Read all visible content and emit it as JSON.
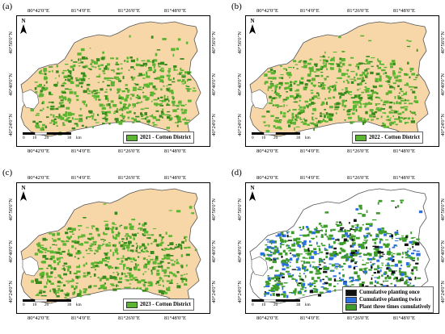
{
  "colors": {
    "land": "#f7d7a8",
    "cotton": "#5cb531",
    "cotton_dark": "#3a8a1d",
    "once": "#111111",
    "twice": "#2c6fe0",
    "three": "#3d9c2a",
    "outline": "#555555"
  },
  "ticks": {
    "top": [
      "80°42'0\"E",
      "81°4'0\"E",
      "81°26'0\"E",
      "81°48'0\"E"
    ],
    "left": [
      "40°56'0\"N",
      "40°40'0\"N",
      "40°24'0\"N"
    ],
    "right": [
      "40°56'0\"N",
      "40°40'0\"N",
      "40°24'0\"N"
    ]
  },
  "scale": {
    "labels": [
      "0",
      "10",
      "20",
      "30"
    ],
    "unit": "km"
  },
  "north_label": "N",
  "panels": [
    {
      "letter": "(a)",
      "legend": [
        {
          "label": "2021 - Cotton District",
          "color_key": "cotton"
        }
      ]
    },
    {
      "letter": "(b)",
      "legend": [
        {
          "label": "2022 - Cotton District",
          "color_key": "cotton"
        }
      ]
    },
    {
      "letter": "(c)",
      "legend": [
        {
          "label": "2023 - Cotton District",
          "color_key": "cotton"
        }
      ]
    },
    {
      "letter": "(d)",
      "legend": [
        {
          "label": "Cumulative planting once",
          "color_key": "once"
        },
        {
          "label": "Cumulative planting twice",
          "color_key": "twice"
        },
        {
          "label": "Plant three times cumulatively",
          "color_key": "three"
        }
      ]
    }
  ]
}
